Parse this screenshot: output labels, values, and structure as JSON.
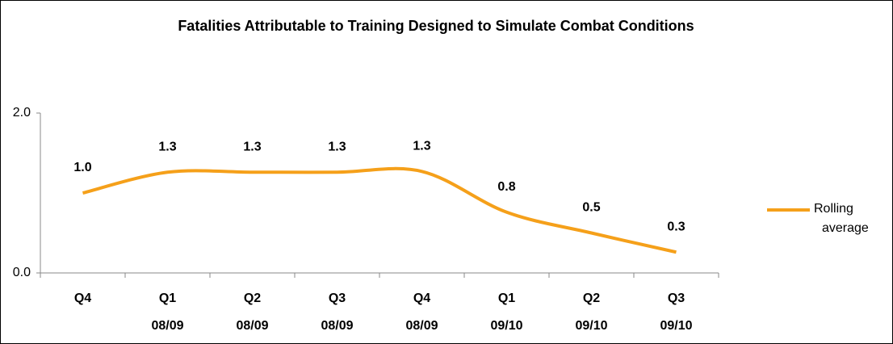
{
  "chart_data": {
    "type": "line",
    "title": "Fatalities Attributable to Training Designed to Simulate Combat Conditions",
    "categories": [
      "Q4",
      "Q1\n08/09",
      "Q2\n08/09",
      "Q3\n08/09",
      "Q4\n08/09",
      "Q1\n09/10",
      "Q2\n09/10",
      "Q3\n09/10"
    ],
    "series": [
      {
        "name": "Rolling average",
        "color": "#f5a01a",
        "values": [
          1.0,
          1.26,
          1.26,
          1.26,
          1.27,
          0.76,
          0.5,
          0.26
        ],
        "value_labels": [
          "1.0",
          "1.3",
          "1.3",
          "1.3",
          "1.3",
          "0.8",
          "0.5",
          "0.3"
        ]
      }
    ],
    "ylim": [
      0,
      2
    ],
    "yticks": [
      {
        "value": 0,
        "label": "0.0"
      },
      {
        "value": 2,
        "label": "2.0"
      }
    ],
    "grid": false,
    "legend": "right"
  }
}
